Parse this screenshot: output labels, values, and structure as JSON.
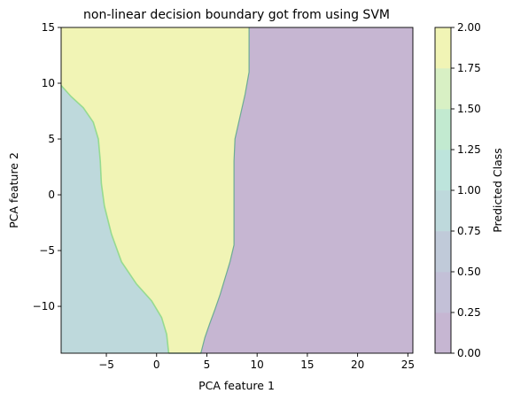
{
  "chart_data": {
    "type": "heatmap",
    "subtype": "decision-boundary-contourf",
    "title": "non-linear decision boundary got from using SVM",
    "xlabel": "PCA feature 1",
    "ylabel": "PCA feature 2",
    "xlim": [
      -9.5,
      25.5
    ],
    "ylim": [
      -14.2,
      15
    ],
    "xticks": [
      -5,
      0,
      5,
      10,
      15,
      20,
      25
    ],
    "yticks": [
      -10,
      -5,
      0,
      5,
      10,
      15
    ],
    "grid": false,
    "classes": [
      {
        "class": 0,
        "color": "#c6b6d2"
      },
      {
        "class": 1,
        "color": "#bed9dc"
      },
      {
        "class": 2,
        "color": "#f1f4b5"
      }
    ],
    "regions": [
      {
        "class": 2,
        "boundary": [
          [
            -9.5,
            15
          ],
          [
            9.2,
            15
          ],
          [
            9.2,
            11.0
          ],
          [
            8.8,
            9.0
          ],
          [
            8.3,
            7.0
          ],
          [
            7.8,
            5.0
          ],
          [
            7.7,
            3.0
          ],
          [
            7.7,
            1.0
          ],
          [
            7.7,
            -1.0
          ],
          [
            7.7,
            -3.0
          ],
          [
            7.7,
            -4.5
          ],
          [
            7.3,
            -6.0
          ],
          [
            6.8,
            -7.5
          ],
          [
            6.3,
            -9.0
          ],
          [
            5.8,
            -10.3
          ],
          [
            5.3,
            -11.5
          ],
          [
            4.8,
            -12.8
          ],
          [
            4.4,
            -14.2
          ],
          [
            1.2,
            -14.2
          ],
          [
            1.0,
            -12.5
          ],
          [
            0.5,
            -11.0
          ],
          [
            -0.5,
            -9.5
          ],
          [
            -2.0,
            -8.0
          ],
          [
            -3.5,
            -6.0
          ],
          [
            -4.5,
            -3.5
          ],
          [
            -5.2,
            -1.0
          ],
          [
            -5.5,
            1.0
          ],
          [
            -5.6,
            3.0
          ],
          [
            -5.8,
            5.0
          ],
          [
            -6.3,
            6.5
          ],
          [
            -7.3,
            7.8
          ],
          [
            -8.5,
            8.8
          ],
          [
            -9.5,
            9.8
          ]
        ]
      },
      {
        "class": 1,
        "boundary": [
          [
            -9.5,
            9.8
          ],
          [
            -8.5,
            8.8
          ],
          [
            -7.3,
            7.8
          ],
          [
            -6.3,
            6.5
          ],
          [
            -5.8,
            5.0
          ],
          [
            -5.6,
            3.0
          ],
          [
            -5.5,
            1.0
          ],
          [
            -5.2,
            -1.0
          ],
          [
            -4.5,
            -3.5
          ],
          [
            -3.5,
            -6.0
          ],
          [
            -2.0,
            -8.0
          ],
          [
            -0.5,
            -9.5
          ],
          [
            0.5,
            -11.0
          ],
          [
            1.0,
            -12.5
          ],
          [
            1.2,
            -14.2
          ],
          [
            -9.5,
            -14.2
          ]
        ]
      }
    ],
    "colorbar": {
      "label": "Predicted Class",
      "range": [
        0,
        2
      ],
      "ticks": [
        "0.00",
        "0.25",
        "0.50",
        "0.75",
        "1.00",
        "1.25",
        "1.50",
        "1.75",
        "2.00"
      ],
      "bands": [
        "#c6b6d2",
        "#c3c0d7",
        "#c0cad9",
        "#bed9dc",
        "#bde4dc",
        "#c2ead0",
        "#d8f0c4",
        "#f1f4b5"
      ]
    }
  }
}
